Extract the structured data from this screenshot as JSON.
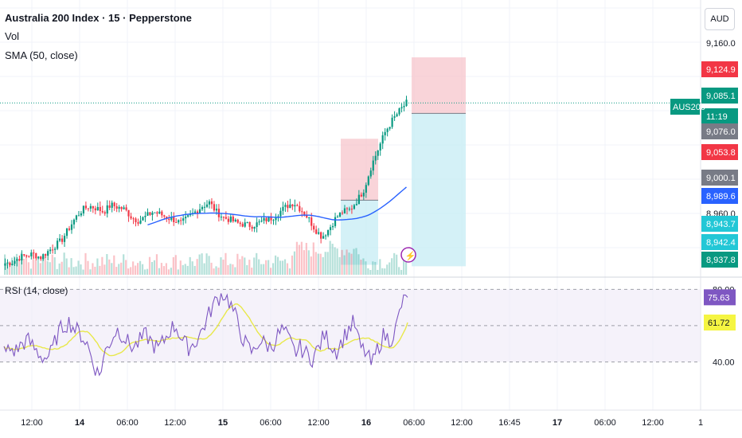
{
  "header": {
    "title": "Australia 200 Index · 15 · Pepperstone",
    "vol_label": "Vol",
    "sma_label": "SMA (50, close)",
    "currency": "AUD"
  },
  "rsi": {
    "label": "RSI (14, close)",
    "levels": [
      "80.00",
      "40.00"
    ],
    "current_badge": "75.63",
    "ma_badge": "61.72"
  },
  "price_axis": {
    "ticks": [
      "9,160.0",
      "8,960.0"
    ],
    "badges": [
      {
        "text": "9,124.9",
        "color": "#f23645"
      },
      {
        "text": "9,085.1",
        "color": "#089981"
      },
      {
        "text": "11:19",
        "color": "#089981"
      },
      {
        "text": "9,076.0",
        "color": "#787b86"
      },
      {
        "text": "9,053.8",
        "color": "#f23645"
      },
      {
        "text": "9,000.1",
        "color": "#787b86"
      },
      {
        "text": "8,989.6",
        "color": "#2962ff"
      },
      {
        "text": "8,943.7",
        "color": "#22c7d6"
      },
      {
        "text": "8,942.4",
        "color": "#22c7d6"
      },
      {
        "text": "8,937.8",
        "color": "#089981"
      }
    ],
    "symbol_tag": "AUS200"
  },
  "time_axis": {
    "labels": [
      "12:00",
      "14",
      "06:00",
      "12:00",
      "15",
      "06:00",
      "12:00",
      "16",
      "06:00",
      "12:00",
      "16:45",
      "17",
      "06:00",
      "12:00",
      "1"
    ],
    "bold": [
      "14",
      "15",
      "16",
      "17"
    ]
  },
  "chart_data": {
    "type": "candlestick",
    "symbol": "AUS200",
    "interval": "15",
    "last_price": 9085.1,
    "ylim": [
      8935,
      9175
    ],
    "sma_period": 50,
    "price_path": [
      8945,
      8946,
      8950,
      8952,
      8953,
      8950,
      8955,
      8960,
      8965,
      8975,
      8985,
      8992,
      8995,
      8993,
      8990,
      8996,
      8994,
      8992,
      8985,
      8982,
      8986,
      8990,
      8988,
      8985,
      8983,
      8980,
      8985,
      8990,
      8995,
      8998,
      8990,
      8985,
      8983,
      8980,
      8979,
      8978,
      8980,
      8983,
      8985,
      8990,
      8995,
      8998,
      8992,
      8985,
      8975,
      8968,
      8975,
      8985,
      8990,
      8992,
      9000,
      9010,
      9030,
      9045,
      9060,
      9070,
      9078,
      9085.1
    ],
    "positions": [
      {
        "name": "short-position-1",
        "stop_top": 9053.8,
        "entry": 9000.1,
        "target": 8943.7
      },
      {
        "name": "short-position-2",
        "stop_top": 9124.9,
        "entry": 9076.0,
        "target": 8942.4
      }
    ],
    "rsi_levels": [
      80,
      40
    ],
    "rsi_current": 75.63,
    "rsi_ma": 61.72,
    "rsi_path": [
      45,
      47,
      46,
      50,
      52,
      48,
      44,
      42,
      45,
      55,
      60,
      62,
      58,
      55,
      50,
      40,
      32,
      45,
      52,
      58,
      55,
      50,
      48,
      52,
      55,
      50,
      47,
      52,
      58,
      60,
      52,
      48,
      50,
      55,
      62,
      70,
      75,
      78,
      73,
      65,
      55,
      48,
      45,
      52,
      50,
      48,
      54,
      58,
      52,
      45,
      48,
      44,
      42,
      48,
      55,
      50,
      46,
      52,
      58,
      62,
      48,
      45,
      38,
      48,
      55,
      52,
      58,
      72,
      75.63
    ]
  },
  "colors": {
    "up": "#089981",
    "down": "#f23645",
    "sma": "#2962ff",
    "rsi": "#7e57c2",
    "rsi_ma": "#e8e84a",
    "stop_zone": "#f7c6cc",
    "target_zone": "#c9eef5"
  }
}
